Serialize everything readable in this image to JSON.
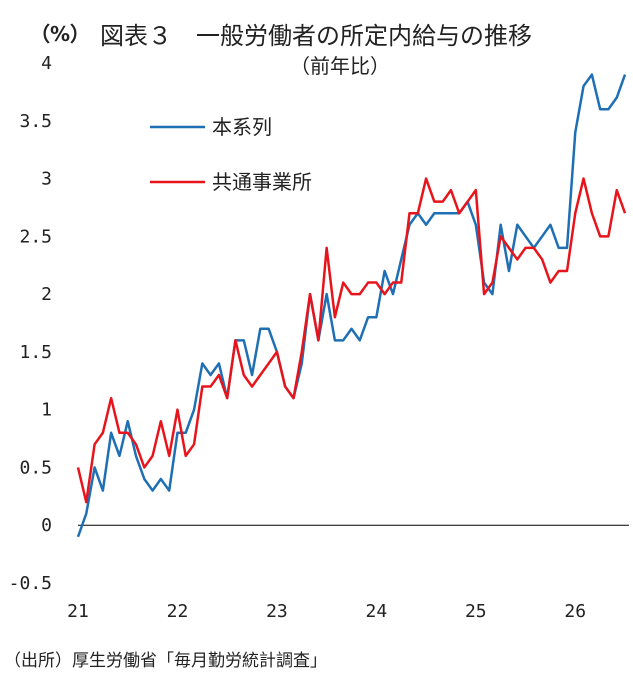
{
  "title_unit": "（%）",
  "title_main": "図表３　一般労働者の所定内給与の推移",
  "title_sub": "（前年比）",
  "source": "（出所）厚生労働省「毎月勤労統計調査」",
  "chart_data": {
    "type": "line",
    "title": "図表３　一般労働者の所定内給与の推移",
    "subtitle": "（前年比）",
    "ylabel": "（%）",
    "ylim": [
      -0.5,
      4
    ],
    "yticks": [
      4,
      3.5,
      3,
      2.5,
      2,
      1.5,
      1,
      0.5,
      0,
      -0.5
    ],
    "ytick_labels": [
      "4",
      "3.5",
      "3",
      "2.5",
      "2",
      "1.5",
      "1",
      "0.5",
      "0",
      "-0.5"
    ],
    "xlim": [
      21,
      26.5
    ],
    "xticks": [
      21,
      22,
      23,
      24,
      25,
      26
    ],
    "xtick_labels": [
      "21",
      "22",
      "23",
      "24",
      "25",
      "26"
    ],
    "legend_position": "top-left",
    "grid": false,
    "zero_line": true,
    "series": [
      {
        "name": "本系列",
        "color": "#1f6fb4",
        "x": [
          21.0,
          21.083,
          21.167,
          21.25,
          21.333,
          21.417,
          21.5,
          21.583,
          21.667,
          21.75,
          21.833,
          21.917,
          22.0,
          22.083,
          22.167,
          22.25,
          22.333,
          22.417,
          22.5,
          22.583,
          22.667,
          22.75,
          22.833,
          22.917,
          23.0,
          23.083,
          23.167,
          23.25,
          23.333,
          23.417,
          23.5,
          23.583,
          23.667,
          23.75,
          23.833,
          23.917,
          24.0,
          24.083,
          24.167,
          24.25,
          24.333,
          24.417,
          24.5,
          24.583,
          24.667,
          24.75,
          24.833,
          24.917,
          25.0,
          25.083,
          25.167,
          25.25,
          25.333,
          25.417,
          25.5,
          25.583,
          25.667,
          25.75,
          25.833,
          25.917,
          26.0,
          26.083,
          26.167,
          26.25,
          26.333,
          26.417,
          26.5
        ],
        "values": [
          -0.1,
          0.1,
          0.5,
          0.3,
          0.8,
          0.6,
          0.9,
          0.6,
          0.4,
          0.3,
          0.4,
          0.3,
          0.8,
          0.8,
          1.0,
          1.4,
          1.3,
          1.4,
          1.1,
          1.6,
          1.6,
          1.3,
          1.7,
          1.7,
          1.5,
          1.2,
          1.1,
          1.4,
          2.0,
          1.6,
          2.0,
          1.6,
          1.6,
          1.7,
          1.6,
          1.8,
          1.8,
          2.2,
          2.0,
          2.3,
          2.6,
          2.7,
          2.6,
          2.7,
          2.7,
          2.7,
          2.7,
          2.8,
          2.6,
          2.1,
          2.0,
          2.6,
          2.2,
          2.6,
          2.5,
          2.4,
          2.5,
          2.6,
          2.4,
          2.4,
          3.4,
          3.8,
          3.9,
          3.6,
          3.6,
          3.7,
          3.9
        ]
      },
      {
        "name": "共通事業所",
        "color": "#e8141b",
        "x": [
          21.0,
          21.083,
          21.167,
          21.25,
          21.333,
          21.417,
          21.5,
          21.583,
          21.667,
          21.75,
          21.833,
          21.917,
          22.0,
          22.083,
          22.167,
          22.25,
          22.333,
          22.417,
          22.5,
          22.583,
          22.667,
          22.75,
          22.833,
          22.917,
          23.0,
          23.083,
          23.167,
          23.25,
          23.333,
          23.417,
          23.5,
          23.583,
          23.667,
          23.75,
          23.833,
          23.917,
          24.0,
          24.083,
          24.167,
          24.25,
          24.333,
          24.417,
          24.5,
          24.583,
          24.667,
          24.75,
          24.833,
          24.917,
          25.0,
          25.083,
          25.167,
          25.25,
          25.333,
          25.417,
          25.5,
          25.583,
          25.667,
          25.75,
          25.833,
          25.917,
          26.0,
          26.083,
          26.167,
          26.25,
          26.333,
          26.417,
          26.5
        ],
        "values": [
          0.5,
          0.2,
          0.7,
          0.8,
          1.1,
          0.8,
          0.8,
          0.7,
          0.5,
          0.6,
          0.9,
          0.6,
          1.0,
          0.6,
          0.7,
          1.2,
          1.2,
          1.3,
          1.1,
          1.6,
          1.3,
          1.2,
          1.3,
          1.4,
          1.5,
          1.2,
          1.1,
          1.5,
          2.0,
          1.6,
          2.4,
          1.8,
          2.1,
          2.0,
          2.0,
          2.1,
          2.1,
          2.0,
          2.1,
          2.1,
          2.7,
          2.7,
          3.0,
          2.8,
          2.8,
          2.9,
          2.7,
          2.8,
          2.9,
          2.0,
          2.1,
          2.5,
          2.4,
          2.3,
          2.4,
          2.4,
          2.3,
          2.1,
          2.2,
          2.2,
          2.7,
          3.0,
          2.7,
          2.5,
          2.5,
          2.9,
          2.7
        ]
      }
    ]
  }
}
